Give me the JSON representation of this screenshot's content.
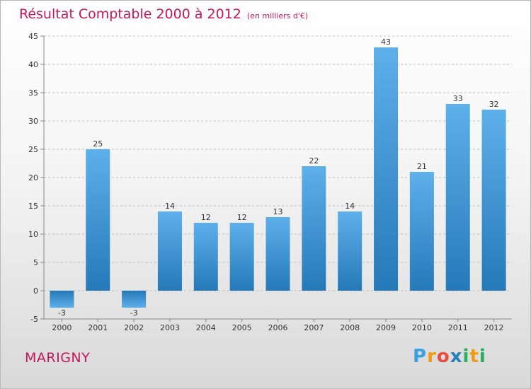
{
  "title": "Résultat Comptable 2000 à 2012",
  "subtitle": "(en milliers d'€)",
  "commune": "MARIGNY",
  "logo": {
    "text": "Proxiti",
    "letters": [
      "P",
      "r",
      "o",
      "x",
      "i",
      "t",
      "i"
    ],
    "colors": [
      "#3aa0e0",
      "#f39c12",
      "#e74c3c",
      "#2980b9",
      "#27ae60",
      "#f39c12",
      "#27ae60"
    ]
  },
  "colors": {
    "bar": "#4ea3e0",
    "bar_dark": "#2579b8",
    "title": "#c2185b",
    "axis": "#888888",
    "grid": "#bdbdbd"
  },
  "chart_data": {
    "type": "bar",
    "title": "Résultat Comptable 2000 à 2012",
    "subtitle": "(en milliers d'€)",
    "categories": [
      "2000",
      "2001",
      "2002",
      "2003",
      "2004",
      "2005",
      "2006",
      "2007",
      "2008",
      "2009",
      "2010",
      "2011",
      "2012"
    ],
    "values": [
      -3,
      25,
      -3,
      14,
      12,
      12,
      13,
      22,
      14,
      43,
      21,
      33,
      32
    ],
    "ylim": [
      -5,
      45
    ],
    "yticks": [
      -5,
      0,
      5,
      10,
      15,
      20,
      25,
      30,
      35,
      40,
      45
    ],
    "xlabel": "",
    "ylabel": "",
    "grid": "horizontal dashed"
  }
}
